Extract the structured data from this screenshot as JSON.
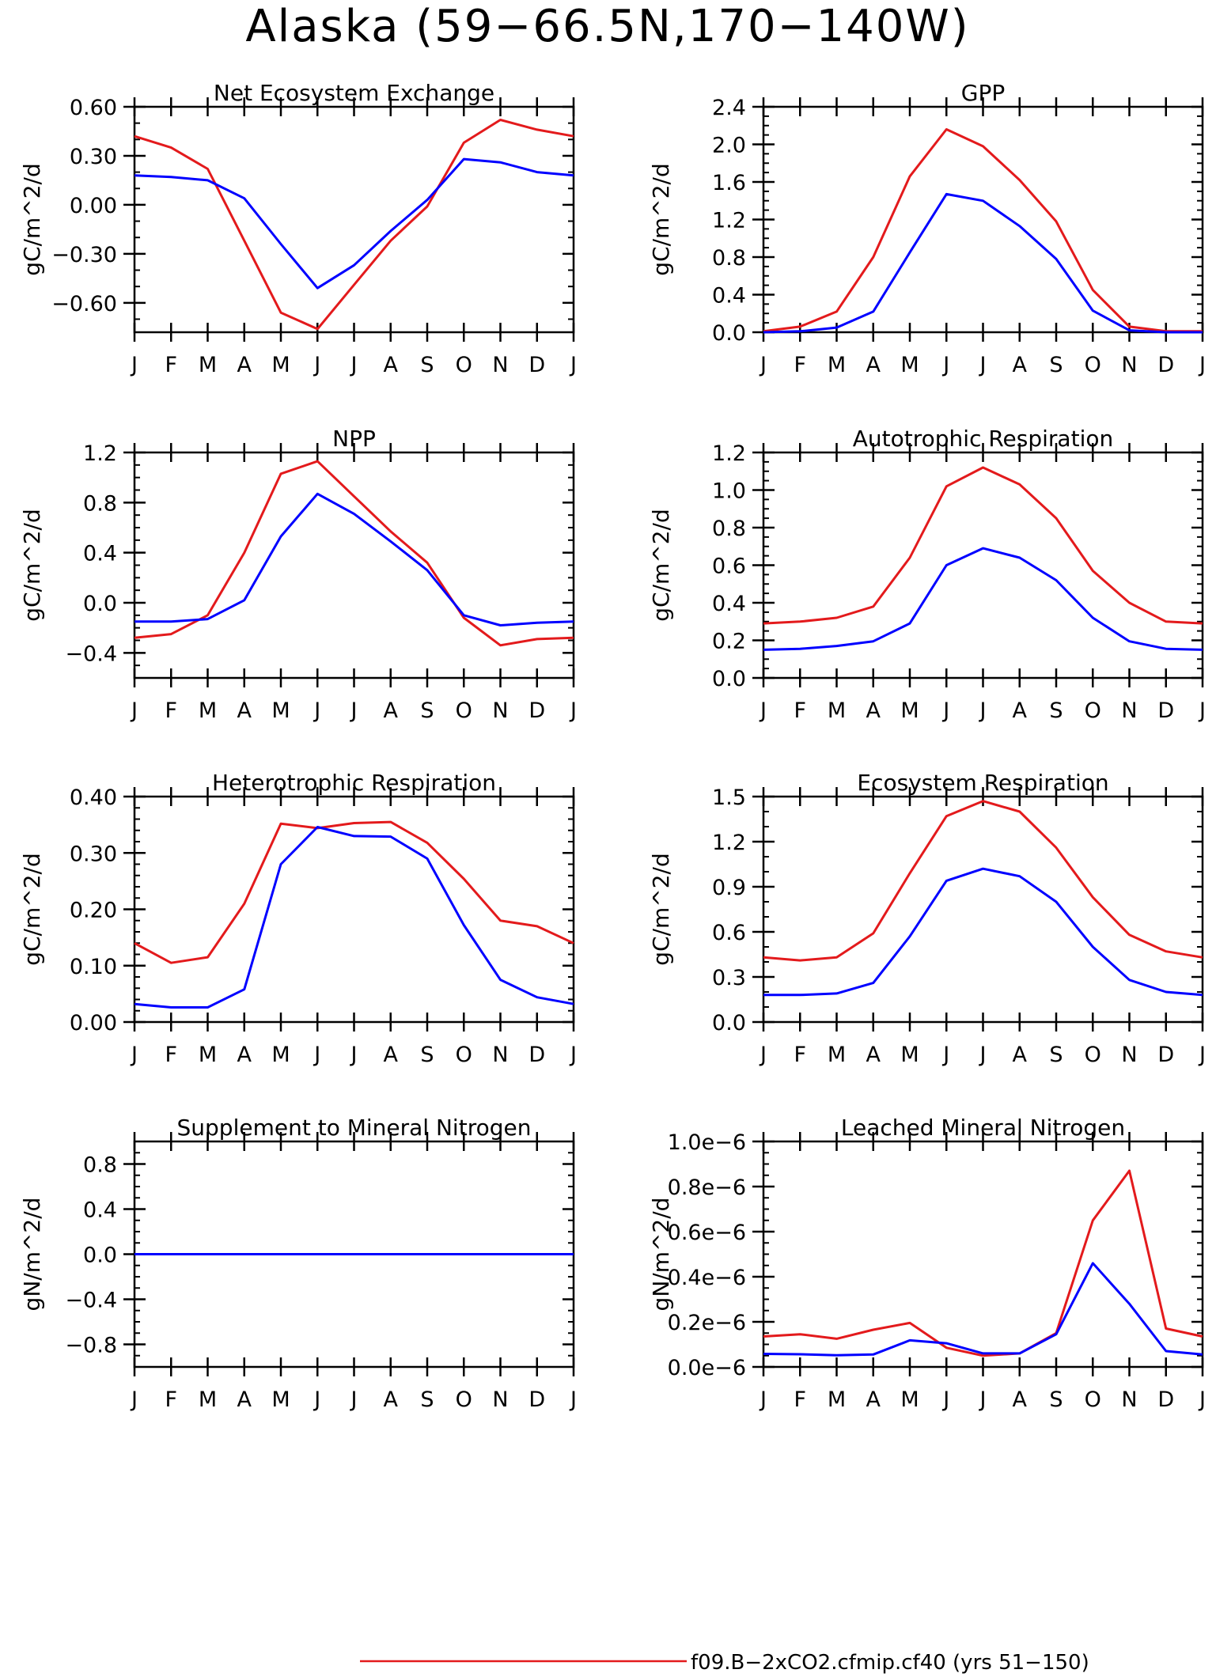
{
  "figure": {
    "title": "Alaska (59−66.5N,170−140W)",
    "legend": {
      "placement": "bottom",
      "entries": [
        {
          "label": "f09.B−2xCO2.cfmip.cf40 (yrs 51−150)",
          "color": "#e31a1c"
        }
      ]
    }
  },
  "chart_data": [
    {
      "type": "line",
      "title": "Net Ecosystem Exchange",
      "ylabel": "gC/m^2/d",
      "x": [
        "J",
        "F",
        "M",
        "A",
        "M",
        "J",
        "J",
        "A",
        "S",
        "O",
        "N",
        "D",
        "J"
      ],
      "ylim": [
        -0.78,
        0.6
      ],
      "yticks": [
        "0.60",
        "0.30",
        "0.00",
        "−0.30",
        "−0.60"
      ],
      "ytick_values": [
        0.6,
        0.3,
        0,
        -0.3,
        -0.6
      ],
      "minor_step": 0.1,
      "series": [
        {
          "color": "#e31a1c",
          "values": [
            0.42,
            0.35,
            0.22,
            -0.22,
            -0.66,
            -0.76,
            -0.49,
            -0.22,
            -0.01,
            0.38,
            0.52,
            0.46,
            0.42
          ]
        },
        {
          "color": "#0000ff",
          "values": [
            0.18,
            0.17,
            0.15,
            0.04,
            -0.24,
            -0.51,
            -0.37,
            -0.16,
            0.03,
            0.28,
            0.26,
            0.2,
            0.18
          ]
        }
      ]
    },
    {
      "type": "line",
      "title": "GPP",
      "ylabel": "gC/m^2/d",
      "x": [
        "J",
        "F",
        "M",
        "A",
        "M",
        "J",
        "J",
        "A",
        "S",
        "O",
        "N",
        "D",
        "J"
      ],
      "ylim": [
        0,
        2.4
      ],
      "yticks": [
        "2.4",
        "2.0",
        "1.6",
        "1.2",
        "0.8",
        "0.4",
        "0.0"
      ],
      "ytick_values": [
        2.4,
        2.0,
        1.6,
        1.2,
        0.8,
        0.4,
        0.0
      ],
      "minor_step": 0.1,
      "series": [
        {
          "color": "#e31a1c",
          "values": [
            0.01,
            0.06,
            0.22,
            0.8,
            1.66,
            2.16,
            1.98,
            1.62,
            1.18,
            0.45,
            0.06,
            0.01,
            0.01
          ]
        },
        {
          "color": "#0000ff",
          "values": [
            0.0,
            0.01,
            0.05,
            0.22,
            0.85,
            1.47,
            1.4,
            1.13,
            0.78,
            0.23,
            0.02,
            0.0,
            0.0
          ]
        }
      ]
    },
    {
      "type": "line",
      "title": "NPP",
      "ylabel": "gC/m^2/d",
      "x": [
        "J",
        "F",
        "M",
        "A",
        "M",
        "J",
        "J",
        "A",
        "S",
        "O",
        "N",
        "D",
        "J"
      ],
      "ylim": [
        -0.6,
        1.2
      ],
      "yticks": [
        "1.2",
        "0.8",
        "0.4",
        "0.0",
        "−0.4"
      ],
      "ytick_values": [
        1.2,
        0.8,
        0.4,
        0.0,
        -0.4
      ],
      "minor_step": 0.1,
      "series": [
        {
          "color": "#e31a1c",
          "values": [
            -0.28,
            -0.25,
            -0.1,
            0.4,
            1.03,
            1.13,
            0.85,
            0.57,
            0.32,
            -0.12,
            -0.34,
            -0.29,
            -0.28
          ]
        },
        {
          "color": "#0000ff",
          "values": [
            -0.15,
            -0.15,
            -0.13,
            0.02,
            0.53,
            0.87,
            0.71,
            0.49,
            0.26,
            -0.1,
            -0.18,
            -0.16,
            -0.15
          ]
        }
      ]
    },
    {
      "type": "line",
      "title": "Autotrophic Respiration",
      "ylabel": "gC/m^2/d",
      "x": [
        "J",
        "F",
        "M",
        "A",
        "M",
        "J",
        "J",
        "A",
        "S",
        "O",
        "N",
        "D",
        "J"
      ],
      "ylim": [
        0,
        1.2
      ],
      "yticks": [
        "1.2",
        "1.0",
        "0.8",
        "0.6",
        "0.4",
        "0.2",
        "0.0"
      ],
      "ytick_values": [
        1.2,
        1.0,
        0.8,
        0.6,
        0.4,
        0.2,
        0.0
      ],
      "minor_step": 0.05,
      "series": [
        {
          "color": "#e31a1c",
          "values": [
            0.29,
            0.3,
            0.32,
            0.38,
            0.64,
            1.02,
            1.12,
            1.03,
            0.85,
            0.57,
            0.4,
            0.3,
            0.29
          ]
        },
        {
          "color": "#0000ff",
          "values": [
            0.15,
            0.155,
            0.17,
            0.195,
            0.29,
            0.6,
            0.69,
            0.64,
            0.52,
            0.32,
            0.195,
            0.155,
            0.15
          ]
        }
      ]
    },
    {
      "type": "line",
      "title": "Heterotrophic Respiration",
      "ylabel": "gC/m^2/d",
      "x": [
        "J",
        "F",
        "M",
        "A",
        "M",
        "J",
        "J",
        "A",
        "S",
        "O",
        "N",
        "D",
        "J"
      ],
      "ylim": [
        0,
        0.4
      ],
      "yticks": [
        "0.40",
        "0.30",
        "0.20",
        "0.10",
        "0.00"
      ],
      "ytick_values": [
        0.4,
        0.3,
        0.2,
        0.1,
        0.0
      ],
      "minor_step": 0.02,
      "series": [
        {
          "color": "#e31a1c",
          "values": [
            0.14,
            0.105,
            0.115,
            0.21,
            0.352,
            0.344,
            0.353,
            0.355,
            0.318,
            0.254,
            0.18,
            0.17,
            0.14
          ]
        },
        {
          "color": "#0000ff",
          "values": [
            0.032,
            0.026,
            0.026,
            0.058,
            0.28,
            0.346,
            0.33,
            0.329,
            0.29,
            0.172,
            0.075,
            0.044,
            0.032
          ]
        }
      ]
    },
    {
      "type": "line",
      "title": "Ecosystem Respiration",
      "ylabel": "gC/m^2/d",
      "x": [
        "J",
        "F",
        "M",
        "A",
        "M",
        "J",
        "J",
        "A",
        "S",
        "O",
        "N",
        "D",
        "J"
      ],
      "ylim": [
        0,
        1.5
      ],
      "yticks": [
        "1.5",
        "1.2",
        "0.9",
        "0.6",
        "0.3",
        "0.0"
      ],
      "ytick_values": [
        1.5,
        1.2,
        0.9,
        0.6,
        0.3,
        0.0
      ],
      "minor_step": 0.1,
      "series": [
        {
          "color": "#e31a1c",
          "values": [
            0.43,
            0.41,
            0.43,
            0.59,
            0.99,
            1.37,
            1.47,
            1.4,
            1.16,
            0.83,
            0.58,
            0.47,
            0.43
          ]
        },
        {
          "color": "#0000ff",
          "values": [
            0.18,
            0.18,
            0.19,
            0.26,
            0.57,
            0.94,
            1.02,
            0.97,
            0.8,
            0.5,
            0.28,
            0.2,
            0.18
          ]
        }
      ]
    },
    {
      "type": "line",
      "title": "Supplement to Mineral Nitrogen",
      "ylabel": "gN/m^2/d",
      "x": [
        "J",
        "F",
        "M",
        "A",
        "M",
        "J",
        "J",
        "A",
        "S",
        "O",
        "N",
        "D",
        "J"
      ],
      "ylim": [
        -1.0,
        1.0
      ],
      "yticks": [
        "0.8",
        "0.4",
        "0.0",
        "−0.4",
        "−0.8"
      ],
      "ytick_values": [
        0.8,
        0.4,
        0.0,
        -0.4,
        -0.8
      ],
      "minor_step": 0.1,
      "series": [
        {
          "color": "#e31a1c",
          "values": [
            0,
            0,
            0,
            0,
            0,
            0,
            0,
            0,
            0,
            0,
            0,
            0,
            0
          ]
        },
        {
          "color": "#0000ff",
          "values": [
            0,
            0,
            0,
            0,
            0,
            0,
            0,
            0,
            0,
            0,
            0,
            0,
            0
          ]
        }
      ]
    },
    {
      "type": "line",
      "title": "Leached Mineral Nitrogen",
      "ylabel": "gN/m^2/d",
      "x": [
        "J",
        "F",
        "M",
        "A",
        "M",
        "J",
        "J",
        "A",
        "S",
        "O",
        "N",
        "D",
        "J"
      ],
      "ylim": [
        0,
        1e-06
      ],
      "yticks": [
        "1.0e−6",
        "0.8e−6",
        "0.6e−6",
        "0.4e−6",
        "0.2e−6",
        "0.0e−6"
      ],
      "ytick_values": [
        1e-06,
        8e-07,
        6e-07,
        4e-07,
        2e-07,
        0.0
      ],
      "minor_step": 5e-08,
      "series": [
        {
          "color": "#e31a1c",
          "values": [
            1.35e-07,
            1.45e-07,
            1.25e-07,
            1.65e-07,
            1.95e-07,
            8.5e-08,
            5e-08,
            6e-08,
            1.5e-07,
            6.5e-07,
            8.7e-07,
            1.7e-07,
            1.35e-07
          ]
        },
        {
          "color": "#0000ff",
          "values": [
            5.8e-08,
            5.6e-08,
            5.2e-08,
            5.5e-08,
            1.18e-07,
            1.05e-07,
            6e-08,
            6e-08,
            1.45e-07,
            4.6e-07,
            2.8e-07,
            7e-08,
            5.5e-08
          ]
        }
      ]
    }
  ]
}
